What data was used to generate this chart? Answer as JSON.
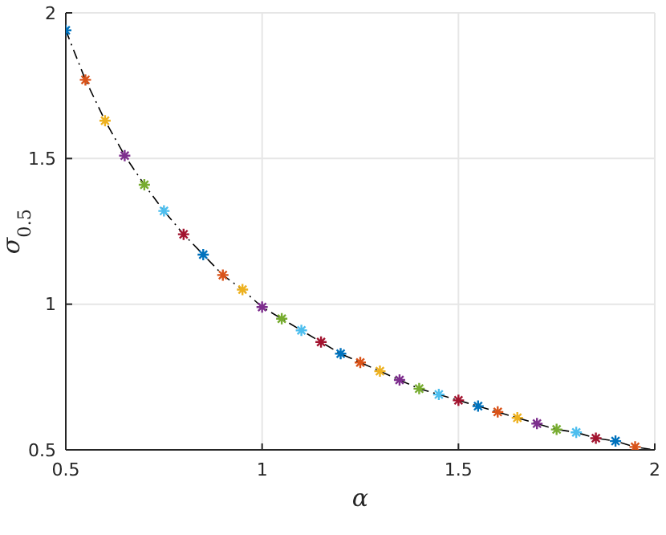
{
  "chart_data": {
    "type": "scatter",
    "xlabel": "α",
    "ylabel": "σ$_{0.5}$",
    "xlim": [
      0.5,
      2
    ],
    "ylim": [
      0.5,
      2
    ],
    "xticks": [
      0.5,
      1,
      1.5,
      2
    ],
    "yticks": [
      0.5,
      1,
      1.5,
      2
    ],
    "grid": true,
    "series": [
      {
        "type": "line",
        "color": "#000000",
        "line_style": "dashdot",
        "marker": "none",
        "x": [
          0.5,
          0.55,
          0.6,
          0.65,
          0.7,
          0.75,
          0.8,
          0.85,
          0.9,
          0.95,
          1,
          1.05,
          1.1,
          1.15,
          1.2,
          1.25,
          1.3,
          1.35,
          1.4,
          1.45,
          1.5,
          1.55,
          1.6,
          1.65,
          1.7,
          1.75,
          1.8,
          1.85,
          1.9,
          1.95,
          2
        ],
        "values": [
          1.94,
          1.77,
          1.63,
          1.51,
          1.41,
          1.32,
          1.24,
          1.17,
          1.1,
          1.05,
          0.99,
          0.95,
          0.91,
          0.87,
          0.83,
          0.8,
          0.77,
          0.74,
          0.71,
          0.69,
          0.67,
          0.65,
          0.63,
          0.61,
          0.59,
          0.57,
          0.56,
          0.54,
          0.53,
          0.51,
          0.5
        ]
      },
      {
        "marker": "cross",
        "x": [
          0.5,
          0.55,
          0.6,
          0.65,
          0.7,
          0.75,
          0.8,
          0.85,
          0.9,
          0.95,
          1,
          1.05,
          1.1,
          1.15,
          1.2,
          1.25,
          1.3,
          1.35,
          1.4,
          1.45,
          1.5,
          1.55,
          1.6,
          1.65,
          1.7,
          1.75,
          1.8,
          1.85,
          1.9,
          1.95
        ],
        "values": [
          1.94,
          1.77,
          1.63,
          1.51,
          1.41,
          1.32,
          1.24,
          1.17,
          1.1,
          1.05,
          0.99,
          0.95,
          0.91,
          0.87,
          0.83,
          0.8,
          0.77,
          0.74,
          0.71,
          0.69,
          0.67,
          0.65,
          0.63,
          0.61,
          0.59,
          0.57,
          0.56,
          0.54,
          0.53,
          0.51
        ],
        "colors": [
          "#0072bd",
          "#d95319",
          "#edb120",
          "#7e2f8e",
          "#77ac30",
          "#4dbeee",
          "#a2142f",
          "#0072bd",
          "#d95319",
          "#edb120",
          "#7e2f8e",
          "#77ac30",
          "#4dbeee",
          "#a2142f",
          "#0072bd",
          "#d95319",
          "#edb120",
          "#7e2f8e",
          "#77ac30",
          "#4dbeee",
          "#a2142f",
          "#0072bd",
          "#d95319",
          "#edb120",
          "#7e2f8e",
          "#77ac30",
          "#4dbeee",
          "#a2142f",
          "#0072bd",
          "#d95319"
        ]
      }
    ]
  }
}
